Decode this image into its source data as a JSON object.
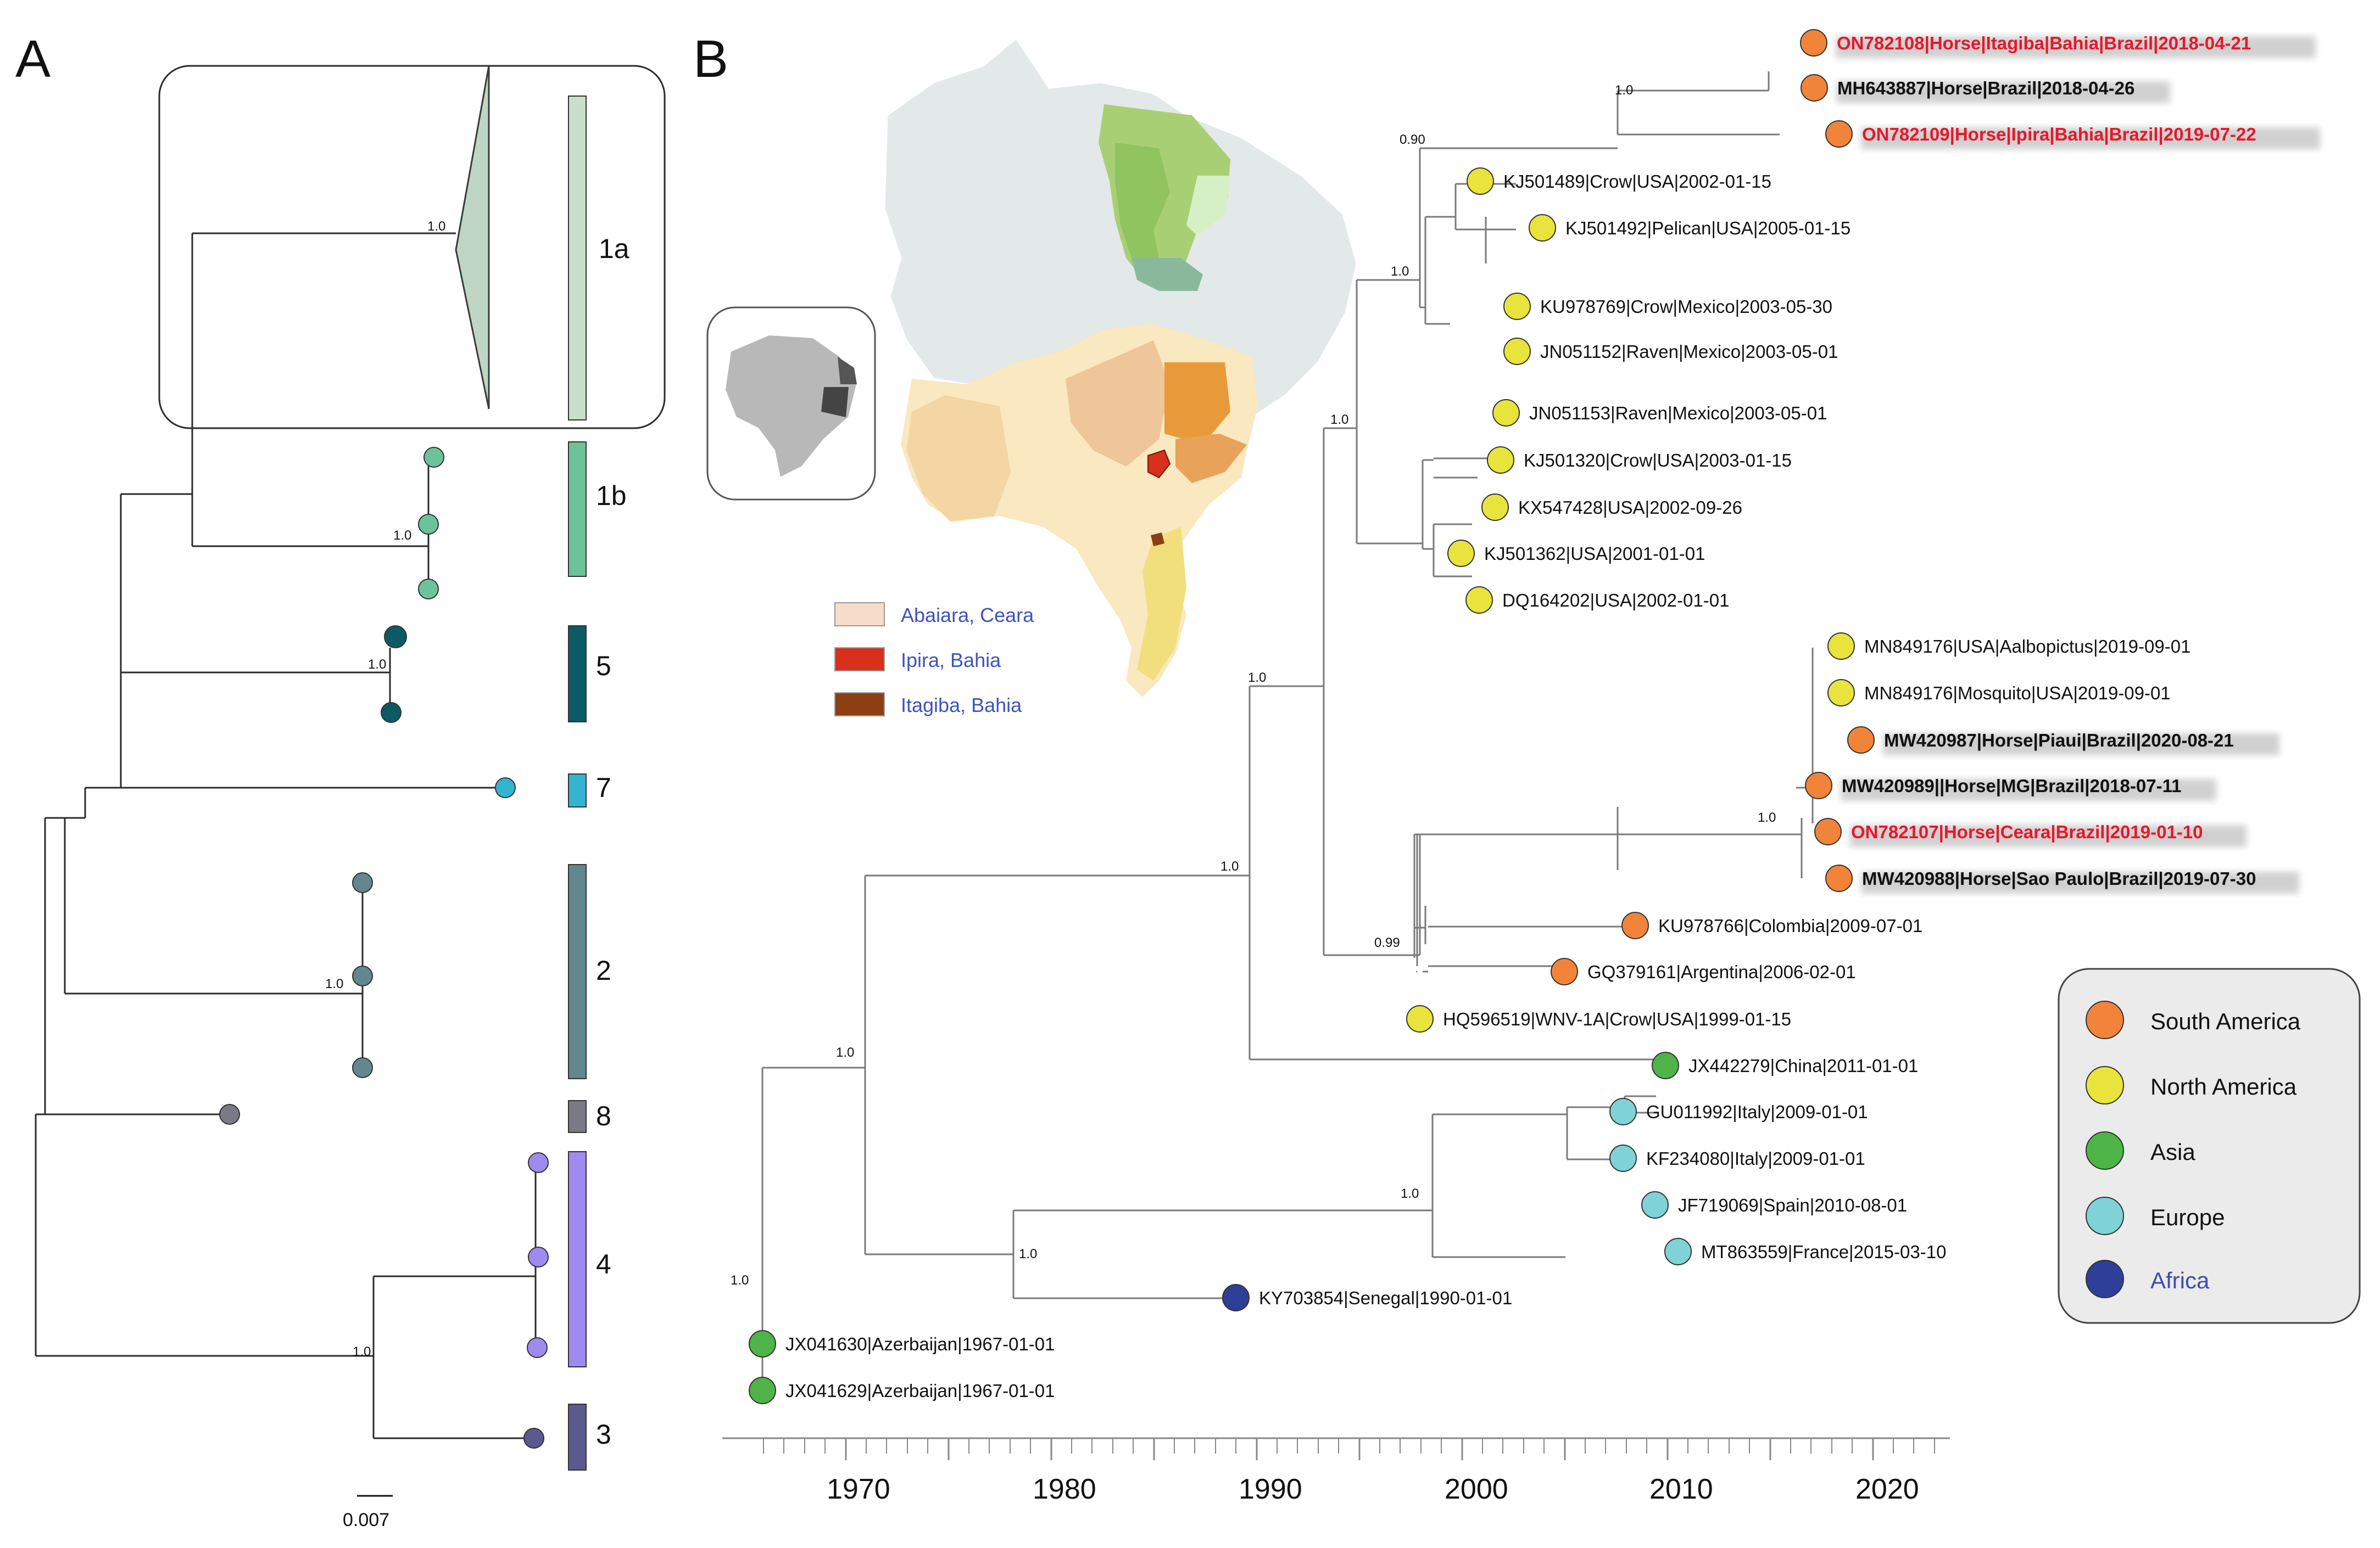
{
  "panel_a": {
    "letter": "A",
    "clades": [
      {
        "label": "1a",
        "color": "#c9dfcc"
      },
      {
        "label": "1b",
        "color": "#6cc29a"
      },
      {
        "label": "5",
        "color": "#0c5a64"
      },
      {
        "label": "7",
        "color": "#33b5d1"
      },
      {
        "label": "2",
        "color": "#62878e"
      },
      {
        "label": "8",
        "color": "#7a7a86"
      },
      {
        "label": "4",
        "color": "#9e8bf0"
      },
      {
        "label": "3",
        "color": "#5b5a8f"
      }
    ],
    "supports": [
      "1.0",
      "1.0",
      "1.0",
      "1.0",
      "1.0"
    ],
    "scale_bar": "0.007"
  },
  "panel_b": {
    "letter": "B",
    "map_legend": [
      {
        "label": "Abaiara, Ceara",
        "color": "#f7dcc9"
      },
      {
        "label": "Ipira, Bahia",
        "color": "#d8301a"
      },
      {
        "label": "Itagiba, Bahia",
        "color": "#8b3f12"
      }
    ],
    "region_legend": [
      {
        "label": "South America",
        "color": "#f2843a"
      },
      {
        "label": "North America",
        "color": "#e8e43c"
      },
      {
        "label": "Asia",
        "color": "#4fb447"
      },
      {
        "label": "Europe",
        "color": "#7fd3d6"
      },
      {
        "label": "Africa",
        "color": "#2e3f9a"
      }
    ],
    "supports": [
      "1.0",
      "0.90",
      "1.0",
      "1.0",
      "1.0",
      "1.0",
      "0.99",
      "1.0",
      "1.0",
      "1.0",
      "1.0",
      "1.0"
    ],
    "tips": [
      {
        "label": "ON782108|Horse|Itagiba|Bahia|Brazil|2018-04-21",
        "region": "South America",
        "style": "red"
      },
      {
        "label": "MH643887|Horse|Brazil|2018-04-26",
        "region": "South America",
        "style": "bold"
      },
      {
        "label": "ON782109|Horse|Ipira|Bahia|Brazil|2019-07-22",
        "region": "South America",
        "style": "red"
      },
      {
        "label": "KJ501489|Crow|USA|2002-01-15",
        "region": "North America",
        "style": "normal"
      },
      {
        "label": "KJ501492|Pelican|USA|2005-01-15",
        "region": "North America",
        "style": "normal"
      },
      {
        "label": "KU978769|Crow|Mexico|2003-05-30",
        "region": "North America",
        "style": "normal"
      },
      {
        "label": "JN051152|Raven|Mexico|2003-05-01",
        "region": "North America",
        "style": "normal"
      },
      {
        "label": "JN051153|Raven|Mexico|2003-05-01",
        "region": "North America",
        "style": "normal"
      },
      {
        "label": "KJ501320|Crow|USA|2003-01-15",
        "region": "North America",
        "style": "normal"
      },
      {
        "label": "KX547428|USA|2002-09-26",
        "region": "North America",
        "style": "normal"
      },
      {
        "label": "KJ501362|USA|2001-01-01",
        "region": "North America",
        "style": "normal"
      },
      {
        "label": "DQ164202|USA|2002-01-01",
        "region": "North America",
        "style": "normal"
      },
      {
        "label": "MN849176|USA|Aalbopictus|2019-09-01",
        "region": "North America",
        "style": "normal"
      },
      {
        "label": "MN849176|Mosquito|USA|2019-09-01",
        "region": "North America",
        "style": "normal"
      },
      {
        "label": "MW420987|Horse|Piaui|Brazil|2020-08-21",
        "region": "South America",
        "style": "bold"
      },
      {
        "label": "MW420989||Horse|MG|Brazil|2018-07-11",
        "region": "South America",
        "style": "bold"
      },
      {
        "label": "ON782107|Horse|Ceara|Brazil|2019-01-10",
        "region": "South America",
        "style": "red"
      },
      {
        "label": "MW420988|Horse|Sao Paulo|Brazil|2019-07-30",
        "region": "South America",
        "style": "bold"
      },
      {
        "label": "KU978766|Colombia|2009-07-01",
        "region": "South America",
        "style": "normal"
      },
      {
        "label": "GQ379161|Argentina|2006-02-01",
        "region": "South America",
        "style": "normal"
      },
      {
        "label": "HQ596519|WNV-1A|Crow|USA|1999-01-15",
        "region": "North America",
        "style": "normal"
      },
      {
        "label": "JX442279|China|2011-01-01",
        "region": "Asia",
        "style": "normal"
      },
      {
        "label": "GU011992|Italy|2009-01-01",
        "region": "Europe",
        "style": "normal"
      },
      {
        "label": "KF234080|Italy|2009-01-01",
        "region": "Europe",
        "style": "normal"
      },
      {
        "label": "JF719069|Spain|2010-08-01",
        "region": "Europe",
        "style": "normal"
      },
      {
        "label": "MT863559|France|2015-03-10",
        "region": "Europe",
        "style": "normal"
      },
      {
        "label": "KY703854|Senegal|1990-01-01",
        "region": "Africa",
        "style": "normal"
      },
      {
        "label": "JX041630|Azerbaijan|1967-01-01",
        "region": "Asia",
        "style": "normal"
      },
      {
        "label": "JX041629|Azerbaijan|1967-01-01",
        "region": "Asia",
        "style": "normal"
      }
    ],
    "axis_ticks": [
      "1970",
      "1980",
      "1990",
      "2000",
      "2010",
      "2020"
    ]
  }
}
